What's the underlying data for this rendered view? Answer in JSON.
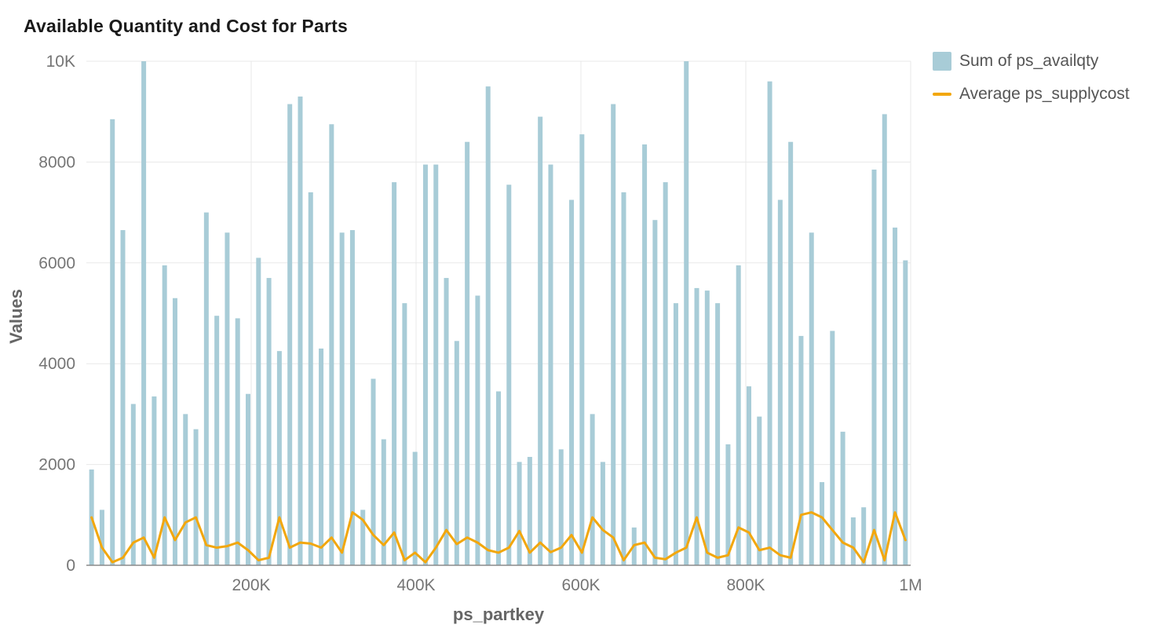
{
  "chart_data": {
    "type": "bar",
    "title": "Available Quantity and Cost for Parts",
    "xlabel": "ps_partkey",
    "ylabel": "Values",
    "ylim": [
      0,
      10000
    ],
    "x_range": [
      0,
      1000000
    ],
    "grid": true,
    "legend_position": "top-right",
    "colors": {
      "bar": "#a8ccd7",
      "line": "#f2a70d",
      "grid": "#e8e8e8",
      "axis": "#8a8a8a",
      "tick_text": "#757575"
    },
    "y_ticks": [
      {
        "value": 0,
        "label": "0"
      },
      {
        "value": 2000,
        "label": "2000"
      },
      {
        "value": 4000,
        "label": "4000"
      },
      {
        "value": 6000,
        "label": "6000"
      },
      {
        "value": 8000,
        "label": "8000"
      },
      {
        "value": 10000,
        "label": "10K"
      }
    ],
    "x_ticks": [
      {
        "value": 200000,
        "label": "200K"
      },
      {
        "value": 400000,
        "label": "400K"
      },
      {
        "value": 600000,
        "label": "600K"
      },
      {
        "value": 800000,
        "label": "800K"
      },
      {
        "value": 1000000,
        "label": "1M"
      }
    ],
    "series": [
      {
        "name": "Sum of ps_availqty",
        "type": "bar",
        "color": "#a8ccd7",
        "values": [
          1900,
          1100,
          8850,
          6650,
          3200,
          10000,
          3350,
          5950,
          5300,
          3000,
          2700,
          7000,
          4950,
          6600,
          4900,
          3400,
          6100,
          5700,
          4250,
          9150,
          9300,
          7400,
          4300,
          8750,
          6600,
          6650,
          1100,
          3700,
          2500,
          7600,
          5200,
          2250,
          7950,
          7950,
          5700,
          4450,
          8400,
          5350,
          9500,
          3450,
          7550,
          2050,
          2150,
          8900,
          7950,
          2300,
          7250,
          8550,
          3000,
          2050,
          9150,
          7400,
          750,
          8350,
          6850,
          7600,
          5200,
          10000,
          5500,
          5450,
          5200,
          2400,
          5950,
          3550,
          2950,
          9600,
          7250,
          8400,
          4550,
          6600,
          1650,
          4650,
          2650,
          950,
          1150,
          7850,
          8950,
          6700,
          6050
        ]
      },
      {
        "name": "Average ps_supplycost",
        "type": "line",
        "color": "#f2a70d",
        "values": [
          950,
          350,
          60,
          150,
          450,
          550,
          150,
          950,
          500,
          850,
          950,
          400,
          350,
          380,
          450,
          300,
          100,
          150,
          950,
          350,
          450,
          430,
          350,
          550,
          250,
          1050,
          900,
          600,
          400,
          650,
          100,
          250,
          60,
          350,
          700,
          420,
          550,
          450,
          300,
          250,
          350,
          680,
          250,
          450,
          260,
          350,
          600,
          250,
          950,
          700,
          550,
          100,
          400,
          450,
          150,
          120,
          250,
          350,
          950,
          250,
          150,
          200,
          750,
          650,
          300,
          350,
          200,
          150,
          1000,
          1050,
          950,
          700,
          450,
          350,
          60,
          700,
          100,
          1050,
          500
        ]
      }
    ]
  }
}
